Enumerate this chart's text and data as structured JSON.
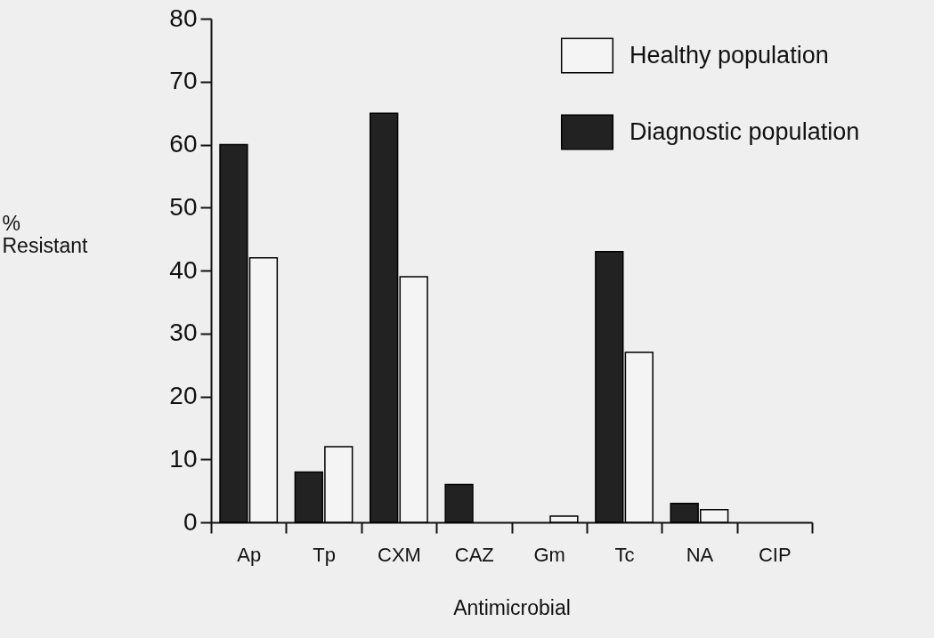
{
  "chart_data": {
    "type": "bar",
    "xlabel": "Antimicrobial",
    "ylabel": "% Resistant",
    "categories": [
      "Ap",
      "Tp",
      "CXM",
      "CAZ",
      "Gm",
      "Tc",
      "NA",
      "CIP"
    ],
    "series": [
      {
        "name": "Diagnostic population",
        "color": "#222222",
        "values": [
          60,
          8,
          65,
          6,
          0,
          43,
          3,
          0
        ]
      },
      {
        "name": "Healthy population",
        "color": "#f4f4f4",
        "values": [
          42,
          12,
          39,
          0,
          1,
          27,
          2,
          0
        ]
      }
    ],
    "ylim": [
      0,
      80
    ],
    "yticks": [
      0,
      10,
      20,
      30,
      40,
      50,
      60,
      70,
      80
    ],
    "grid": false,
    "legend": "top right"
  }
}
